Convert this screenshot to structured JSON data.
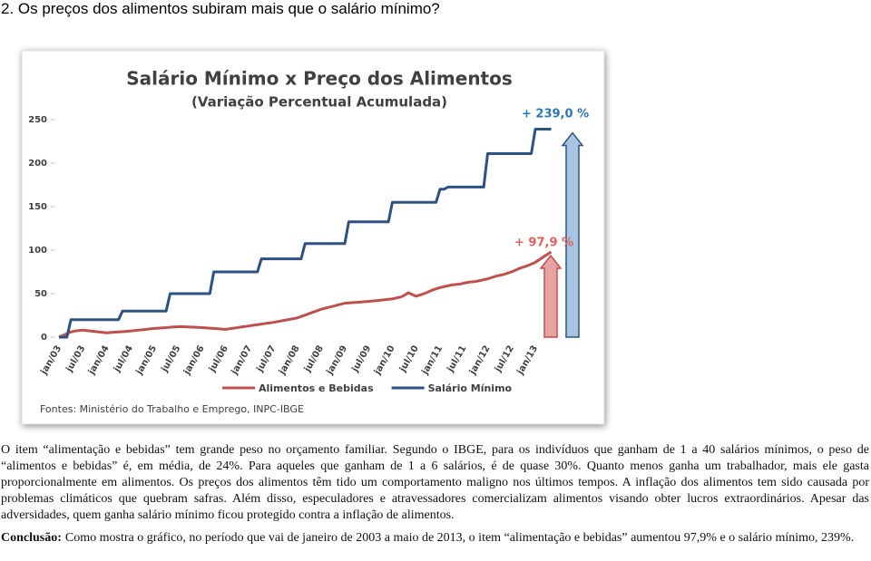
{
  "heading": "2. Os preços dos alimentos subiram mais que o salário mínimo?",
  "chart_data": {
    "type": "line",
    "title": "Salário Mínimo x Preço dos Alimentos",
    "subtitle": "(Variação Percentual Acumulada)",
    "source": "Fontes: Ministério do Trabalho e Emprego, INPC-IBGE",
    "ylim": [
      0,
      250
    ],
    "yticks": [
      0,
      50,
      100,
      150,
      200,
      250
    ],
    "grid": false,
    "legend": "bottom",
    "categories": [
      "jan/03",
      null,
      null,
      null,
      null,
      null,
      "jul/03",
      null,
      null,
      null,
      null,
      null,
      "jan/04",
      null,
      null,
      null,
      null,
      null,
      "jul/04",
      null,
      null,
      null,
      null,
      null,
      "jan/05",
      null,
      null,
      null,
      null,
      null,
      "jul/05",
      null,
      null,
      null,
      null,
      null,
      "jan/06",
      null,
      null,
      null,
      null,
      null,
      "jul/06",
      null,
      null,
      null,
      null,
      null,
      "jan/07",
      null,
      null,
      null,
      null,
      null,
      "jul/07",
      null,
      null,
      null,
      null,
      null,
      "jan/08",
      null,
      null,
      null,
      null,
      null,
      "jul/08",
      null,
      null,
      null,
      null,
      null,
      "jan/09",
      null,
      null,
      null,
      null,
      null,
      "jul/09",
      null,
      null,
      null,
      null,
      null,
      "jan/10",
      null,
      null,
      null,
      null,
      null,
      "jul/10",
      null,
      null,
      null,
      null,
      null,
      "jan/11",
      null,
      null,
      null,
      null,
      null,
      "jul/11",
      null,
      null,
      null,
      null,
      null,
      "jan/12",
      null,
      null,
      null,
      null,
      null,
      "jul/12",
      null,
      null,
      null,
      null,
      null,
      "jan/13",
      null,
      null,
      null,
      null
    ],
    "series": [
      {
        "name": "Alimentos e Bebidas",
        "color": "#c0504d",
        "arrow_fill": "#e6a3a1",
        "values": [
          0,
          2,
          4,
          6,
          7,
          7.5,
          8,
          7.5,
          7,
          6.5,
          6,
          5.5,
          5,
          5.3,
          5.7,
          6,
          6.3,
          6.7,
          7,
          7.5,
          8,
          8.5,
          9,
          9.5,
          10,
          10.3,
          10.7,
          11,
          11.3,
          11.7,
          12,
          12,
          11.8,
          11.6,
          11.4,
          11.2,
          11,
          10.7,
          10.3,
          10,
          9.7,
          9.3,
          9,
          9.7,
          10.3,
          11,
          11.7,
          12.3,
          13,
          13.7,
          14.3,
          15,
          15.7,
          16.3,
          17,
          17.8,
          18.7,
          19.5,
          20.3,
          21.2,
          22,
          23.7,
          25.3,
          27,
          28.7,
          30.3,
          32,
          33.2,
          34.3,
          35.5,
          36.7,
          37.8,
          39,
          39.3,
          39.7,
          40,
          40.3,
          40.7,
          41,
          41.5,
          42,
          42.5,
          43,
          43.5,
          44,
          45,
          46,
          48,
          51,
          49,
          47,
          48.5,
          50,
          52,
          54,
          55.5,
          57,
          58,
          59,
          60,
          60.5,
          61,
          62,
          63,
          63.5,
          64,
          65,
          66,
          67,
          68.5,
          70,
          71,
          72,
          73.5,
          75,
          77,
          79,
          80.5,
          82,
          84,
          86,
          89,
          92,
          95,
          97.9
        ]
      },
      {
        "name": "Salário Mínimo",
        "color": "#2c5380",
        "arrow_fill": "#a9c3e3",
        "values": [
          0,
          0,
          0,
          20,
          20,
          20,
          20,
          20,
          20,
          20,
          20,
          20,
          20,
          20,
          20,
          20,
          30,
          30,
          30,
          30,
          30,
          30,
          30,
          30,
          30,
          30,
          30,
          30,
          50,
          50,
          50,
          50,
          50,
          50,
          50,
          50,
          50,
          50,
          50,
          75,
          75,
          75,
          75,
          75,
          75,
          75,
          75,
          75,
          75,
          75,
          75,
          90,
          90,
          90,
          90,
          90,
          90,
          90,
          90,
          90,
          90,
          90,
          107.5,
          107.5,
          107.5,
          107.5,
          107.5,
          107.5,
          107.5,
          107.5,
          107.5,
          107.5,
          107.5,
          132.5,
          132.5,
          132.5,
          132.5,
          132.5,
          132.5,
          132.5,
          132.5,
          132.5,
          132.5,
          132.5,
          155,
          155,
          155,
          155,
          155,
          155,
          155,
          155,
          155,
          155,
          155,
          155,
          170,
          170,
          172.5,
          172.5,
          172.5,
          172.5,
          172.5,
          172.5,
          172.5,
          172.5,
          172.5,
          172.5,
          211,
          211,
          211,
          211,
          211,
          211,
          211,
          211,
          211,
          211,
          211,
          211,
          239,
          239,
          239,
          239,
          239
        ]
      }
    ],
    "annotations": [
      {
        "text": "+ 239,0 %",
        "series": 1,
        "color": "#2e75b6"
      },
      {
        "text": "+ 97,9 %",
        "series": 0,
        "color": "#e0605a"
      }
    ]
  },
  "paragraphs": [
    "O item “alimentação e bebidas” tem grande peso no orçamento familiar. Segundo o IBGE, para os indivíduos que ganham de 1 a 40 salários mínimos, o peso de “alimentos e bebidas” é, em média, de 24%. Para aqueles que ganham de 1 a 6 salários, é de quase 30%. Quanto menos ganha um trabalhador, mais ele gasta proporcionalmente em alimentos. Os preços dos alimentos têm tido um comportamento maligno nos últimos tempos. A inflação dos alimentos tem sido causada por problemas climáticos que quebram safras. Além disso, especuladores e atravessadores comercializam alimentos visando obter lucros extraordinários. Apesar das adversidades, quem ganha salário mínimo ficou protegido contra a inflação de alimentos."
  ],
  "conclusion": {
    "label": "Conclusão:",
    "text": "Como mostra o gráfico, no período que vai de janeiro de 2003 a maio de 2013, o item “alimentação e bebidas” aumentou 97,9% e o salário mínimo, 239%."
  }
}
